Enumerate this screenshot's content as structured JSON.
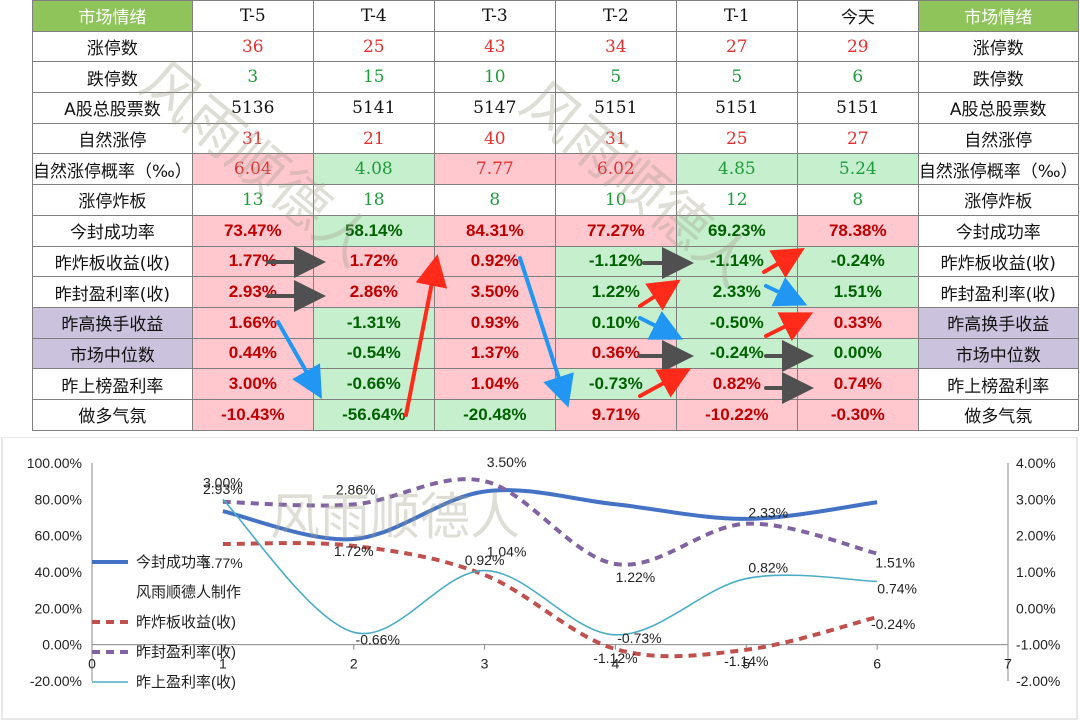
{
  "table": {
    "corner_left": "市场情绪",
    "corner_right": "市场情绪",
    "columns": [
      "T-5",
      "T-4",
      "T-3",
      "T-2",
      "T-1",
      "今天"
    ],
    "rows": [
      {
        "label": "涨停数",
        "values": [
          "36",
          "25",
          "43",
          "34",
          "27",
          "29"
        ]
      },
      {
        "label": "跌停数",
        "values": [
          "3",
          "15",
          "10",
          "5",
          "5",
          "6"
        ]
      },
      {
        "label": "A股总股票数",
        "values": [
          "5136",
          "5141",
          "5147",
          "5151",
          "5151",
          "5151"
        ]
      },
      {
        "label": "自然涨停",
        "values": [
          "31",
          "21",
          "40",
          "31",
          "25",
          "27"
        ]
      },
      {
        "label": "自然涨停概率（‰）",
        "values": [
          "6.04",
          "4.08",
          "7.77",
          "6.02",
          "4.85",
          "5.24"
        ]
      },
      {
        "label": "涨停炸板",
        "values": [
          "13",
          "18",
          "8",
          "10",
          "12",
          "8"
        ]
      },
      {
        "label": "今封成功率",
        "values": [
          "73.47%",
          "58.14%",
          "84.31%",
          "77.27%",
          "69.23%",
          "78.38%"
        ]
      },
      {
        "label": "昨炸板收益(收)",
        "values": [
          "1.77%",
          "1.72%",
          "0.92%",
          "-1.12%",
          "-1.14%",
          "-0.24%"
        ]
      },
      {
        "label": "昨封盈利率(收)",
        "values": [
          "2.93%",
          "2.86%",
          "3.50%",
          "1.22%",
          "2.33%",
          "1.51%"
        ]
      },
      {
        "label": "昨高换手收益",
        "values": [
          "1.66%",
          "-1.31%",
          "0.93%",
          "0.10%",
          "-0.50%",
          "0.33%"
        ]
      },
      {
        "label": "市场中位数",
        "values": [
          "0.44%",
          "-0.54%",
          "1.37%",
          "0.36%",
          "-0.24%",
          "0.00%"
        ]
      },
      {
        "label": "昨上榜盈利率",
        "values": [
          "3.00%",
          "-0.66%",
          "1.04%",
          "-0.73%",
          "0.82%",
          "0.74%"
        ]
      },
      {
        "label": "做多气氛",
        "values": [
          "-10.43%",
          "-56.64%",
          "-20.48%",
          "9.71%",
          "-10.22%",
          "-0.30%"
        ]
      }
    ]
  },
  "watermark": "风雨顺德人",
  "colors": {
    "header_green": "#8fc45a",
    "pink": "#ffc7ce",
    "light_green": "#c6efce",
    "purple": "#cbc3dd",
    "series_blue": "#4472c4",
    "series_red": "#c0504d",
    "series_purple": "#8064a2",
    "series_teal": "#4bacc6"
  },
  "chart_data": {
    "type": "line",
    "x_ticks": [
      "0",
      "1",
      "2",
      "3",
      "4",
      "5",
      "6",
      "7"
    ],
    "xlim": [
      0,
      7
    ],
    "y_left_ticks": [
      "100.00%",
      "80.00%",
      "60.00%",
      "40.00%",
      "20.00%",
      "0.00%",
      "-20.00%"
    ],
    "y_left_lim": [
      -20,
      100
    ],
    "y_right_ticks": [
      "4.00%",
      "3.00%",
      "2.00%",
      "1.00%",
      "0.00%",
      "-1.00%",
      "-2.00%"
    ],
    "y_right_lim": [
      -2,
      4
    ],
    "legend_note": "风雨顺德人制作",
    "series": [
      {
        "name": "今封成功率",
        "axis": "left",
        "x": [
          1,
          2,
          3,
          4,
          5,
          6
        ],
        "y": [
          73.47,
          58.14,
          84.31,
          77.27,
          69.23,
          78.38
        ],
        "labels": []
      },
      {
        "name": "昨炸板收益(收)",
        "axis": "right",
        "x": [
          1,
          2,
          3,
          4,
          5,
          6
        ],
        "y": [
          1.77,
          1.72,
          0.92,
          -1.12,
          -1.14,
          -0.24
        ],
        "labels": [
          "1.77%",
          "1.72%",
          "0.92%",
          "-1.12%",
          "-1.14%",
          "-0.24%"
        ]
      },
      {
        "name": "昨封盈利率(收)",
        "axis": "right",
        "x": [
          1,
          2,
          3,
          4,
          5,
          6
        ],
        "y": [
          2.93,
          2.86,
          3.5,
          1.22,
          2.33,
          1.51
        ],
        "labels": [
          "2.93%",
          "2.86%",
          "3.50%",
          "1.22%",
          "2.33%",
          "1.51%"
        ]
      },
      {
        "name": "昨上盈利率(收)",
        "axis": "right",
        "x": [
          1,
          2,
          3,
          4,
          5,
          6
        ],
        "y": [
          3.0,
          -0.66,
          1.04,
          -0.73,
          0.82,
          0.74
        ],
        "labels": [
          "3.00%",
          "-0.66%",
          "1.04%",
          "-0.73%",
          "0.82%",
          "0.74%"
        ]
      }
    ]
  }
}
